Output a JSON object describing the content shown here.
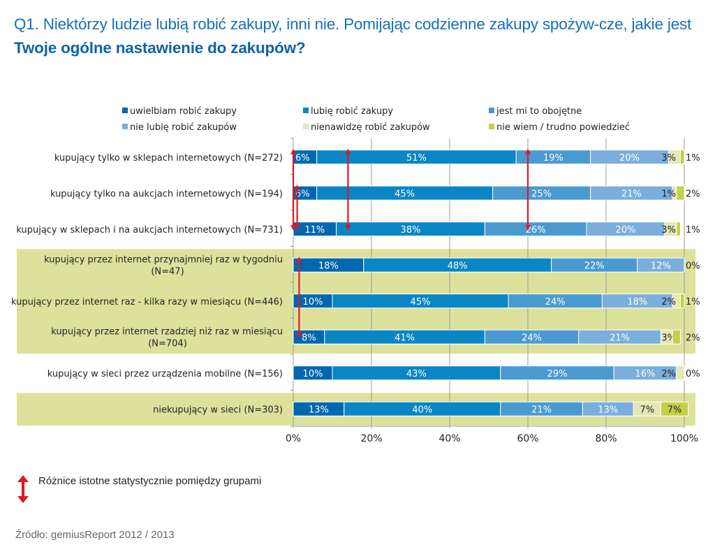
{
  "title": {
    "normal": "Q1. Niektórzy ludzie lubią robić zakupy, inni nie. Pomijając codzienne zakupy spożyw-cze, jakie jest ",
    "bold": "Twoje ogólne nastawienie do zakupów?"
  },
  "chart_data": {
    "type": "bar",
    "orientation": "horizontal",
    "stacked": true,
    "title": "Q1. Niektórzy ludzie lubią robić zakupy, inni nie. Pomijając codzienne zakupy spożywcze, jakie jest Twoje ogólne nastawienie do zakupów?",
    "xlabel": "",
    "ylabel": "",
    "xlim": [
      0,
      100
    ],
    "xticks": [
      "0%",
      "20%",
      "40%",
      "60%",
      "80%",
      "100%"
    ],
    "grid": true,
    "legend_position": "top",
    "categories": [
      "kupujący tylko w sklepach internetowych (N=272)",
      "kupujący tylko na aukcjach internetowych (N=194)",
      "kupujący w sklepach i na aukcjach internetowych (N=731)",
      "kupujący przez internet przynajmniej raz w tygodniu (N=47)",
      "kupujący przez internet raz - kilka razy w miesiącu (N=446)",
      "kupujący przez internet rzadziej niż raz w miesiącu (N=704)",
      "kupujący w sieci przez urządzenia mobilne (N=156)",
      "niekupujący w sieci (N=303)"
    ],
    "category_lines": [
      [
        "kupujący tylko w sklepach internetowych (N=272)"
      ],
      [
        "kupujący tylko na aukcjach internetowych (N=194)"
      ],
      [
        "kupujący w sklepach i na aukcjach internetowych (N=731)"
      ],
      [
        "kupujący przez internet przynajmniej raz w tygodniu",
        "(N=47)"
      ],
      [
        "kupujący przez internet raz - kilka razy w miesiącu (N=446)"
      ],
      [
        "kupujący przez internet rzadziej niż raz w miesiącu",
        "(N=704)"
      ],
      [
        "kupujący w sieci przez urządzenia mobilne (N=156)"
      ],
      [
        "niekupujący w sieci (N=303)"
      ]
    ],
    "highlighted_bands": [
      [
        3,
        5
      ],
      [
        7,
        7
      ]
    ],
    "band_color": "#dce29c",
    "series": [
      {
        "name": "uwielbiam robić zakupy",
        "color": "#0067b1",
        "label_color": "#ffffff",
        "values": [
          6,
          6,
          11,
          18,
          10,
          8,
          10,
          13
        ]
      },
      {
        "name": "lubię robić zakupy",
        "color": "#0a86c6",
        "label_color": "#ffffff",
        "values": [
          51,
          45,
          38,
          48,
          45,
          41,
          43,
          40
        ]
      },
      {
        "name": "jest mi to obojętne",
        "color": "#4a9ad2",
        "label_color": "#ffffff",
        "values": [
          19,
          25,
          26,
          22,
          24,
          24,
          29,
          21
        ]
      },
      {
        "name": "nie lubię robić zakupów",
        "color": "#7aaedc",
        "label_color": "#ffffff",
        "values": [
          20,
          21,
          20,
          12,
          18,
          21,
          16,
          13
        ]
      },
      {
        "name": "nienawidzę robić zakupów",
        "color": "#e4e8b4",
        "label_color": "#222222",
        "values": [
          3,
          1,
          3,
          0,
          2,
          3,
          2,
          7
        ]
      },
      {
        "name": "nie wiem / trudno powiedzieć",
        "color": "#c3d049",
        "label_color": "#222222",
        "values": [
          1,
          2,
          1,
          0,
          1,
          2,
          0,
          7
        ]
      }
    ],
    "significance_arrows": [
      {
        "x": 0,
        "from": 0,
        "to": 2
      },
      {
        "x": 1,
        "from": 1,
        "to": 2
      },
      {
        "x": 14,
        "from": 0,
        "to": 2
      },
      {
        "x": 60,
        "from": 0,
        "to": 2
      },
      {
        "x": 1.5,
        "from": 3,
        "to": 5
      }
    ]
  },
  "footer": {
    "significance_legend": "Różnice istotne statystycznie pomiędzy grupami",
    "source": "Źródło: gemiusReport 2012 / 2013"
  }
}
